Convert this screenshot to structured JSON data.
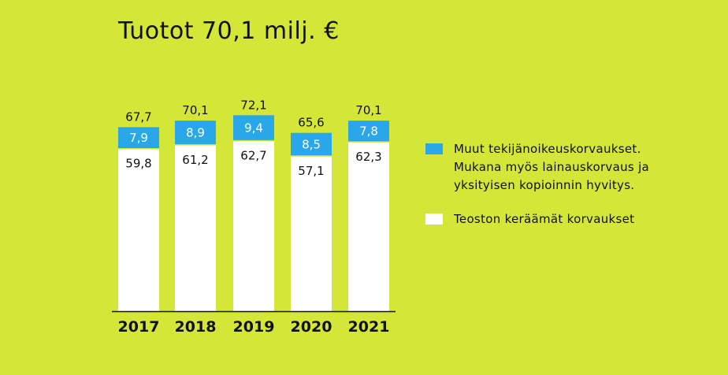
{
  "chart_data": {
    "type": "bar",
    "stacked": true,
    "title": "Tuotot 70,1 milj. €",
    "categories": [
      "2017",
      "2018",
      "2019",
      "2020",
      "2021"
    ],
    "series": [
      {
        "name": "Teoston keräämät korvaukset",
        "values": [
          59.8,
          61.2,
          62.7,
          57.1,
          62.3
        ],
        "labels": [
          "59,8",
          "61,2",
          "62,7",
          "57,1",
          "62,3"
        ],
        "color": "#ffffff"
      },
      {
        "name": "Muut tekijänoikeuskorvaukset. Mukana myös lainauskorvaus ja yksityisen kopioinnin hyvitys.",
        "values": [
          7.9,
          8.9,
          9.4,
          8.5,
          7.8
        ],
        "labels": [
          "7,9",
          "8,9",
          "9,4",
          "8,5",
          "7,8"
        ],
        "color": "#2aa7e8"
      }
    ],
    "totals": [
      67.7,
      70.1,
      72.1,
      65.6,
      70.1
    ],
    "total_labels": [
      "67,7",
      "70,1",
      "72,1",
      "65,6",
      "70,1"
    ],
    "ylim": [
      0,
      72.1
    ],
    "grid": false,
    "legend_position": "right",
    "xlabel": "",
    "ylabel": ""
  },
  "colors": {
    "background": "#d4e637",
    "baseline": "#111111",
    "bar_label_dark": "#111111",
    "bar_label_light": "#ffffff"
  }
}
